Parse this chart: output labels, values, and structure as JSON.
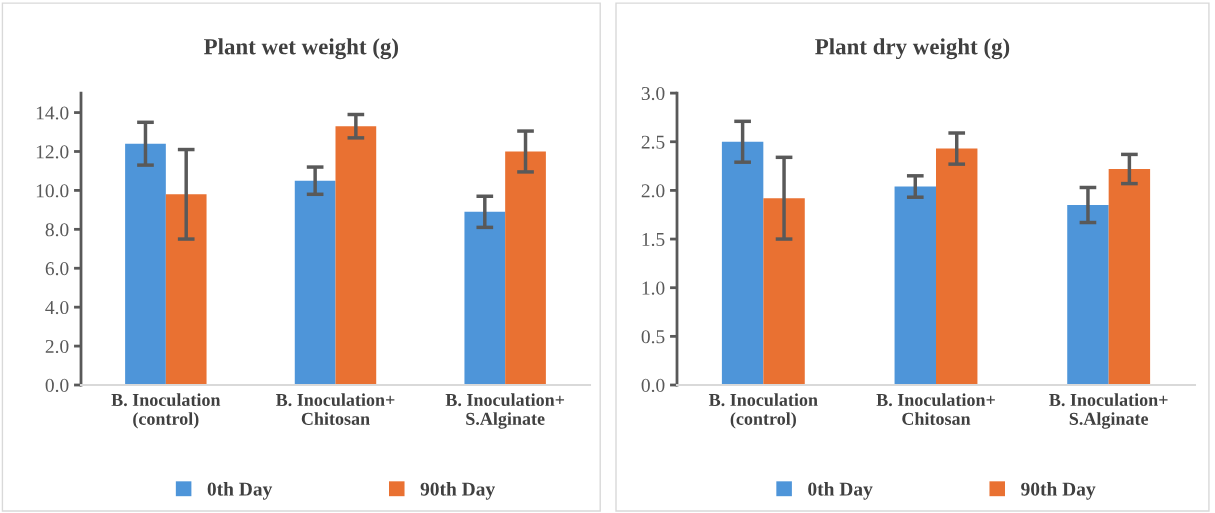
{
  "chart_data": [
    {
      "type": "bar",
      "title": "Plant wet weight (g)",
      "categories": [
        "B. Inoculation\n(control)",
        "B. Inoculation+\nChitosan",
        "B. Inoculation+\nS.Alginate"
      ],
      "series": [
        {
          "name": "0th Day",
          "color": "#4e95d9",
          "values": [
            12.4,
            10.5,
            8.9
          ],
          "errors": [
            1.1,
            0.7,
            0.8
          ]
        },
        {
          "name": "90th Day",
          "color": "#e97132",
          "values": [
            9.8,
            13.3,
            12.0
          ],
          "errors": [
            2.3,
            0.6,
            1.05
          ]
        }
      ],
      "ylim": [
        0,
        15
      ],
      "yticks": [
        {
          "value": 0,
          "label": "0.0"
        },
        {
          "value": 2,
          "label": "2.0"
        },
        {
          "value": 4,
          "label": "4.0"
        },
        {
          "value": 6,
          "label": "6.0"
        },
        {
          "value": 8,
          "label": "8.0"
        },
        {
          "value": 10,
          "label": "10.0"
        },
        {
          "value": 12,
          "label": "12.0"
        },
        {
          "value": 14,
          "label": "14.0"
        }
      ],
      "grid": false,
      "legend": "bottom"
    },
    {
      "type": "bar",
      "title": "Plant dry weight (g)",
      "categories": [
        "B. Inoculation\n(control)",
        "B. Inoculation+\nChitosan",
        "B. Inoculation+\nS.Alginate"
      ],
      "series": [
        {
          "name": "0th Day",
          "color": "#4e95d9",
          "values": [
            2.5,
            2.04,
            1.85
          ],
          "errors": [
            0.21,
            0.11,
            0.18
          ]
        },
        {
          "name": "90th Day",
          "color": "#e97132",
          "values": [
            1.92,
            2.43,
            2.22
          ],
          "errors": [
            0.42,
            0.16,
            0.15
          ]
        }
      ],
      "ylim": [
        0,
        3
      ],
      "yticks": [
        {
          "value": 0,
          "label": "0.0"
        },
        {
          "value": 0.5,
          "label": "0.5"
        },
        {
          "value": 1,
          "label": "1.0"
        },
        {
          "value": 1.5,
          "label": "1.5"
        },
        {
          "value": 2,
          "label": "2.0"
        },
        {
          "value": 2.5,
          "label": "2.5"
        },
        {
          "value": 3,
          "label": "3.0"
        }
      ],
      "grid": false,
      "legend": "bottom"
    }
  ]
}
